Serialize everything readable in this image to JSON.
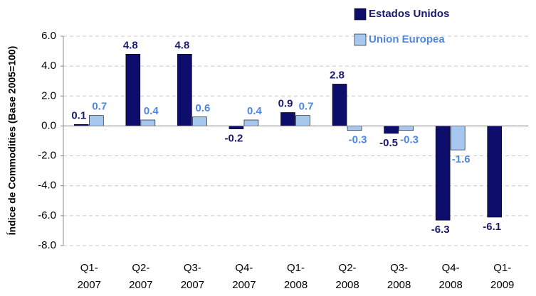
{
  "chart_data": {
    "type": "bar",
    "y_label": "Índice de Commodities  (Base 2005=100)",
    "categories": [
      "Q1-\n2007",
      "Q2-\n2007",
      "Q3-\n2007",
      "Q4-\n2007",
      "Q1-\n2008",
      "Q2-\n2008",
      "Q3-\n2008",
      "Q4-\n2008",
      "Q1-\n2009"
    ],
    "series": [
      {
        "name": "Estados Unidos",
        "color": "#0d0d6b",
        "label_color": "#1a1a6e",
        "values": [
          0.1,
          4.8,
          4.8,
          -0.2,
          0.9,
          2.8,
          -0.5,
          -6.3,
          -6.1
        ]
      },
      {
        "name": "Union Europea",
        "color": "#a6c8f0",
        "label_color": "#4f86e0",
        "values": [
          0.7,
          0.4,
          0.6,
          0.4,
          0.7,
          -0.3,
          -0.3,
          -1.6,
          null
        ]
      }
    ],
    "ylim": [
      -8,
      6
    ],
    "yticks": [
      {
        "value": -8,
        "label": "-8.0"
      },
      {
        "value": -6,
        "label": "-6.0"
      },
      {
        "value": -4,
        "label": "-4.0"
      },
      {
        "value": -2,
        "label": "-2.0"
      },
      {
        "value": 0,
        "label": "0.0"
      },
      {
        "value": 2,
        "label": "2.0"
      },
      {
        "value": 4,
        "label": "4.0"
      },
      {
        "value": 6,
        "label": "6.0"
      }
    ],
    "grid": true,
    "legend": "top-right"
  }
}
